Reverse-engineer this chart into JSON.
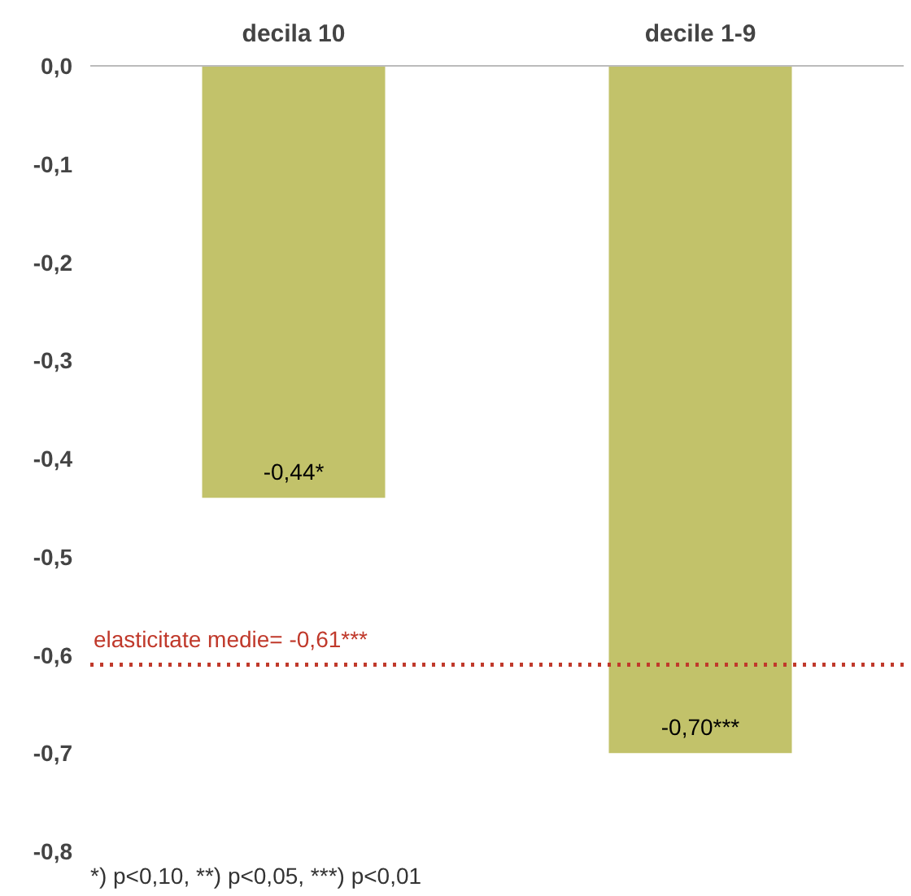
{
  "chart_data": {
    "type": "bar",
    "categories": [
      "decila 10",
      "decile 1-9"
    ],
    "values": [
      -0.44,
      -0.7
    ],
    "value_labels": [
      "-0,44*",
      "-0,70***"
    ],
    "color": "#c2c26a",
    "ylim": [
      -0.8,
      0.0
    ],
    "yticks": [
      {
        "value": 0.0,
        "label": "0,0"
      },
      {
        "value": -0.1,
        "label": "-0,1"
      },
      {
        "value": -0.2,
        "label": "-0,2"
      },
      {
        "value": -0.3,
        "label": "-0,3"
      },
      {
        "value": -0.4,
        "label": "-0,4"
      },
      {
        "value": -0.5,
        "label": "-0,5"
      },
      {
        "value": -0.6,
        "label": "-0,6"
      },
      {
        "value": -0.7,
        "label": "-0,7"
      },
      {
        "value": -0.8,
        "label": "-0,8"
      }
    ],
    "ref_lines": [
      {
        "axis": "y",
        "value": -0.61,
        "label": "elasticitate medie= -0,61***",
        "color": "#c0392b",
        "line_style": "dotted"
      }
    ],
    "annotations": [
      "*) p<0,10, **) p<0,05, ***) p<0,01"
    ],
    "grid": false
  }
}
